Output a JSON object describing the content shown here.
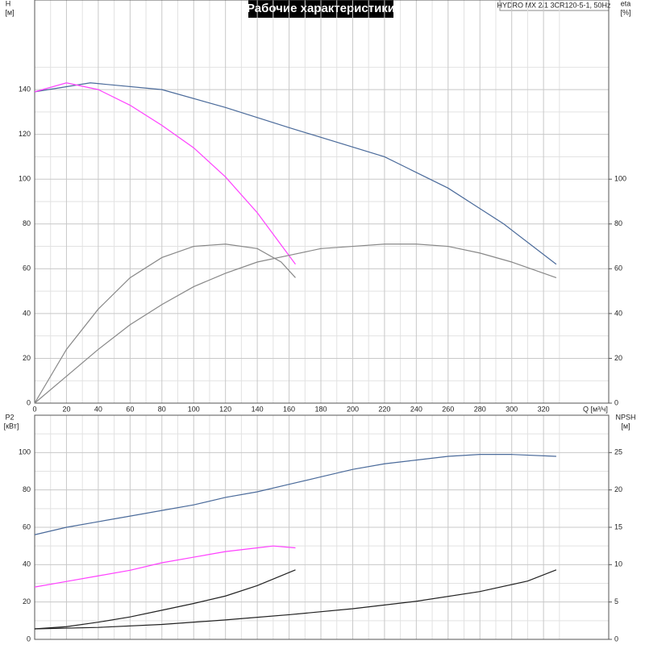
{
  "chart_data": [
    {
      "type": "line",
      "title": "Рабочие характеристики",
      "note": "HYDRO MX 2/1 3CR120-5-1, 50Hz",
      "ylabel": "H",
      "yunit": "[м]",
      "y2label": "eta",
      "y2unit": "[%]",
      "xlabel": "Q [м³/ч]",
      "xlim": [
        0,
        361
      ],
      "xticks": [
        0,
        20,
        40,
        60,
        80,
        100,
        120,
        140,
        160,
        180,
        200,
        220,
        240,
        260,
        280,
        300,
        320
      ],
      "ylim": [
        0,
        180
      ],
      "yticks": [
        0,
        20,
        40,
        60,
        80,
        100,
        120,
        140
      ],
      "y2lim": [
        0,
        180
      ],
      "y2ticks": [
        0,
        20,
        40,
        60,
        80,
        100
      ],
      "grid": true,
      "series": [
        {
          "color": "#4a6a9a",
          "x": [
            0,
            35,
            80,
            120,
            160,
            220,
            260,
            295,
            328
          ],
          "values": [
            139,
            143,
            140,
            132,
            123,
            110,
            96,
            80,
            62
          ]
        },
        {
          "color": "#ff40ff",
          "x": [
            0,
            20,
            40,
            60,
            80,
            100,
            120,
            140,
            164
          ],
          "values": [
            139,
            143,
            140,
            133,
            124,
            114,
            101,
            85,
            62
          ]
        },
        {
          "color": "#888888",
          "axis": "y2",
          "x": [
            0,
            20,
            40,
            60,
            80,
            100,
            120,
            140,
            155,
            164
          ],
          "values": [
            0,
            24,
            42,
            56,
            65,
            70,
            71,
            69,
            63,
            56
          ]
        },
        {
          "color": "#888888",
          "axis": "y2",
          "x": [
            0,
            20,
            40,
            60,
            80,
            100,
            120,
            140,
            160,
            180,
            200,
            220,
            240,
            260,
            280,
            300,
            328
          ],
          "values": [
            0,
            12,
            24,
            35,
            44,
            52,
            58,
            63,
            66,
            69,
            70,
            71,
            71,
            70,
            67,
            63,
            56
          ]
        }
      ]
    },
    {
      "type": "line",
      "ylabel": "P2",
      "yunit": "[кВт]",
      "y2label": "NPSH",
      "y2unit": "[м]",
      "xlim": [
        0,
        361
      ],
      "ylim": [
        0,
        120
      ],
      "yticks": [
        0,
        20,
        40,
        60,
        80,
        100
      ],
      "y2lim": [
        0,
        30
      ],
      "y2ticks": [
        0,
        5,
        10,
        15,
        20,
        25
      ],
      "grid": true,
      "series": [
        {
          "color": "#4a6a9a",
          "x": [
            0,
            20,
            40,
            60,
            80,
            100,
            120,
            140,
            160,
            180,
            200,
            220,
            240,
            260,
            280,
            300,
            328
          ],
          "values": [
            56,
            60,
            63,
            66,
            69,
            72,
            76,
            79,
            83,
            87,
            91,
            94,
            96,
            98,
            99,
            99,
            98
          ]
        },
        {
          "color": "#ff40ff",
          "x": [
            0,
            20,
            40,
            60,
            80,
            100,
            120,
            140,
            150,
            164
          ],
          "values": [
            28,
            31,
            34,
            37,
            41,
            44,
            47,
            49,
            50,
            49
          ]
        },
        {
          "color": "#222222",
          "axis": "y2",
          "x": [
            0,
            20,
            40,
            60,
            80,
            100,
            120,
            140,
            164
          ],
          "values": [
            1.4,
            1.7,
            2.3,
            3,
            3.9,
            4.8,
            5.8,
            7.2,
            9.3
          ]
        },
        {
          "color": "#222222",
          "axis": "y2",
          "x": [
            0,
            40,
            80,
            120,
            160,
            200,
            240,
            280,
            310,
            328
          ],
          "values": [
            1.4,
            1.6,
            2,
            2.6,
            3.3,
            4.1,
            5.1,
            6.4,
            7.8,
            9.3
          ]
        }
      ]
    }
  ]
}
